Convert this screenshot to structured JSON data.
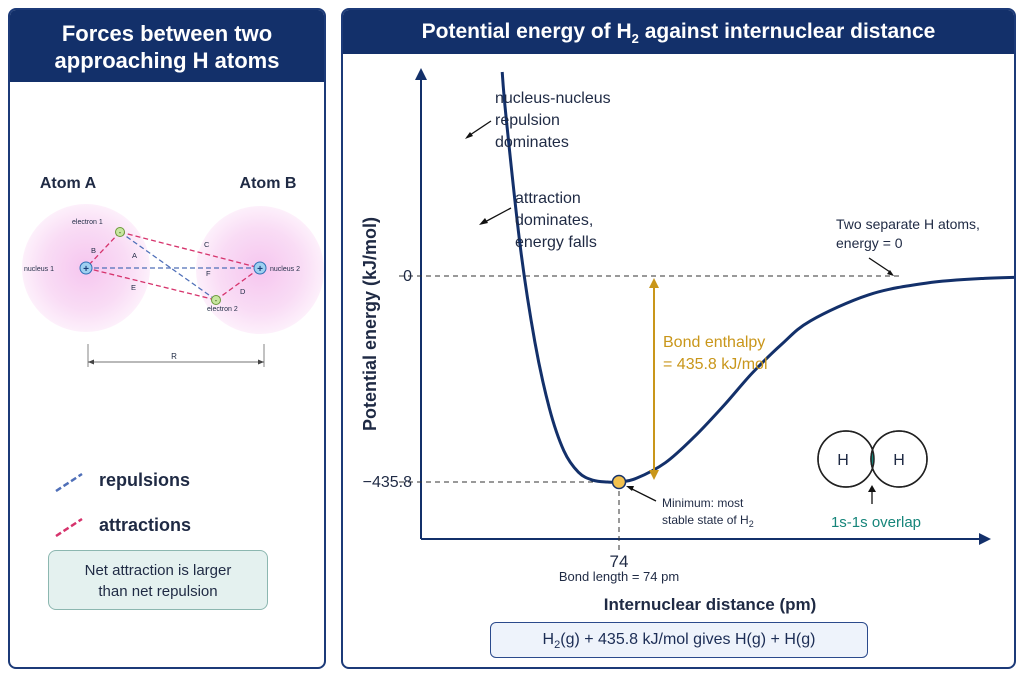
{
  "left_panel": {
    "title_line1": "Forces between two",
    "title_line2": "approaching H atoms",
    "atom_a": "Atom A",
    "atom_b": "Atom B",
    "labels": {
      "electron1": "electron 1",
      "electron2": "electron 2",
      "nucleus1": "nucleus 1",
      "nucleus2": "nucleus 2",
      "A": "A",
      "B": "B",
      "C": "C",
      "D": "D",
      "E": "E",
      "F": "F",
      "R": "R",
      "plus": "+",
      "minus": "-"
    },
    "legend": {
      "repulsions": "repulsions",
      "attractions": "attractions",
      "repulsion_color": "#4f6fb8",
      "attraction_color": "#d6336c"
    },
    "net_line1": "Net attraction is larger",
    "net_line2": "than net repulsion"
  },
  "right_panel": {
    "title_pre": "Potential energy of H",
    "title_sub": "2",
    "title_post": " against internuclear distance",
    "equation": {
      "h2": "H",
      "h2_sub": "2",
      "rest": "(g)  +  435.8 kJ/mol gives H(g)  +  H(g)"
    }
  },
  "chart_data": {
    "type": "line",
    "xlabel": "Internuclear distance (pm)",
    "ylabel": "Potential energy (kJ/mol)",
    "ytick_labels": [
      "0",
      "−435.8"
    ],
    "xtick_labels": [
      "74"
    ],
    "series": [
      {
        "x": [
          20,
          25,
          30,
          35,
          40,
          45,
          50,
          55,
          60,
          65,
          70,
          74,
          80,
          90,
          100,
          110,
          120,
          130,
          140,
          160,
          180,
          200,
          220,
          240,
          260
        ],
        "y": [
          1700,
          1150,
          700,
          340,
          60,
          -140,
          -280,
          -370,
          -415,
          -432,
          -435.8,
          -435.8,
          -428,
          -395,
          -340,
          -275,
          -205,
          -145,
          -95,
          -40,
          -15,
          -5,
          -2,
          -0.5,
          0
        ]
      }
    ],
    "minimum": {
      "x": 74,
      "y": -435.8
    },
    "annotations": {
      "repulsion_line1": "nucleus-nucleus",
      "repulsion_line2": "repulsion",
      "repulsion_line3": "dominates",
      "attraction_line1": "attraction",
      "attraction_line2": "dominates,",
      "attraction_line3": "energy falls",
      "separate_line1": "Two separate H atoms,",
      "separate_line2": "energy = 0",
      "bond_enthalpy_line1": "Bond enthalpy",
      "bond_enthalpy_line2": "= 435.8 kJ/mol",
      "minimum_line1": "Minimum: most",
      "minimum_line2_pre": "stable state of H",
      "minimum_line2_sub": "2",
      "bond_length": "Bond length = 74 pm"
    },
    "overlap": {
      "left_atom": "H",
      "right_atom": "H",
      "caption": "1s-1s overlap",
      "color": "#16857a"
    },
    "colors": {
      "curve": "#13306a",
      "bond_enthalpy": "#c9961a",
      "minimum_point": "#f2c14e"
    }
  }
}
